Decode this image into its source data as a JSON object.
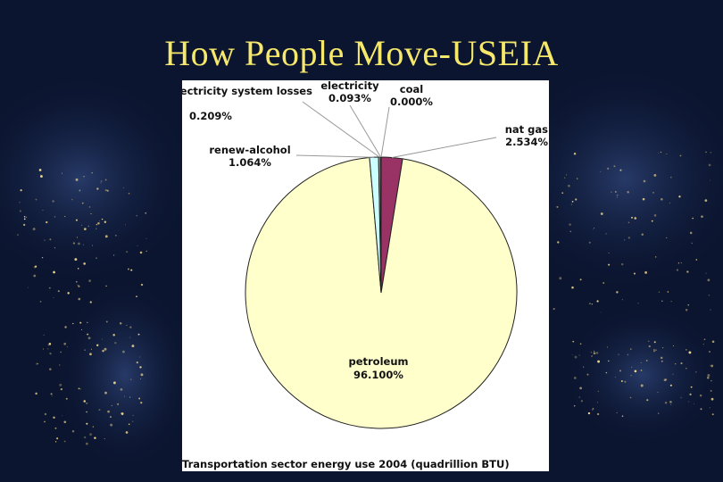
{
  "slide": {
    "title": "How People Move-USEIA"
  },
  "colors": {
    "background": "#0b1530",
    "title": "#f5e86a",
    "petroleum": "#ffffcc",
    "nat_gas": "#993366",
    "renew_alcohol": "#ccffff",
    "electricity_system_losses": "#cccccc",
    "coal": "#999999",
    "electricity": "#666699"
  },
  "chart_data": {
    "type": "pie",
    "title": "Transportation sector energy use 2004 (quadrillion BTU)",
    "slices": [
      {
        "name": "nat gas",
        "value": 2.534,
        "label": "2.534%"
      },
      {
        "name": "petroleum",
        "value": 96.1,
        "label": "96.100%"
      },
      {
        "name": "renew-alcohol",
        "value": 1.064,
        "label": "1.064%"
      },
      {
        "name": "electricity system losses",
        "value": 0.209,
        "label": "0.209%"
      },
      {
        "name": "electricity",
        "value": 0.093,
        "label": "0.093%"
      },
      {
        "name": "coal",
        "value": 0.0,
        "label": "0.000%"
      }
    ]
  }
}
